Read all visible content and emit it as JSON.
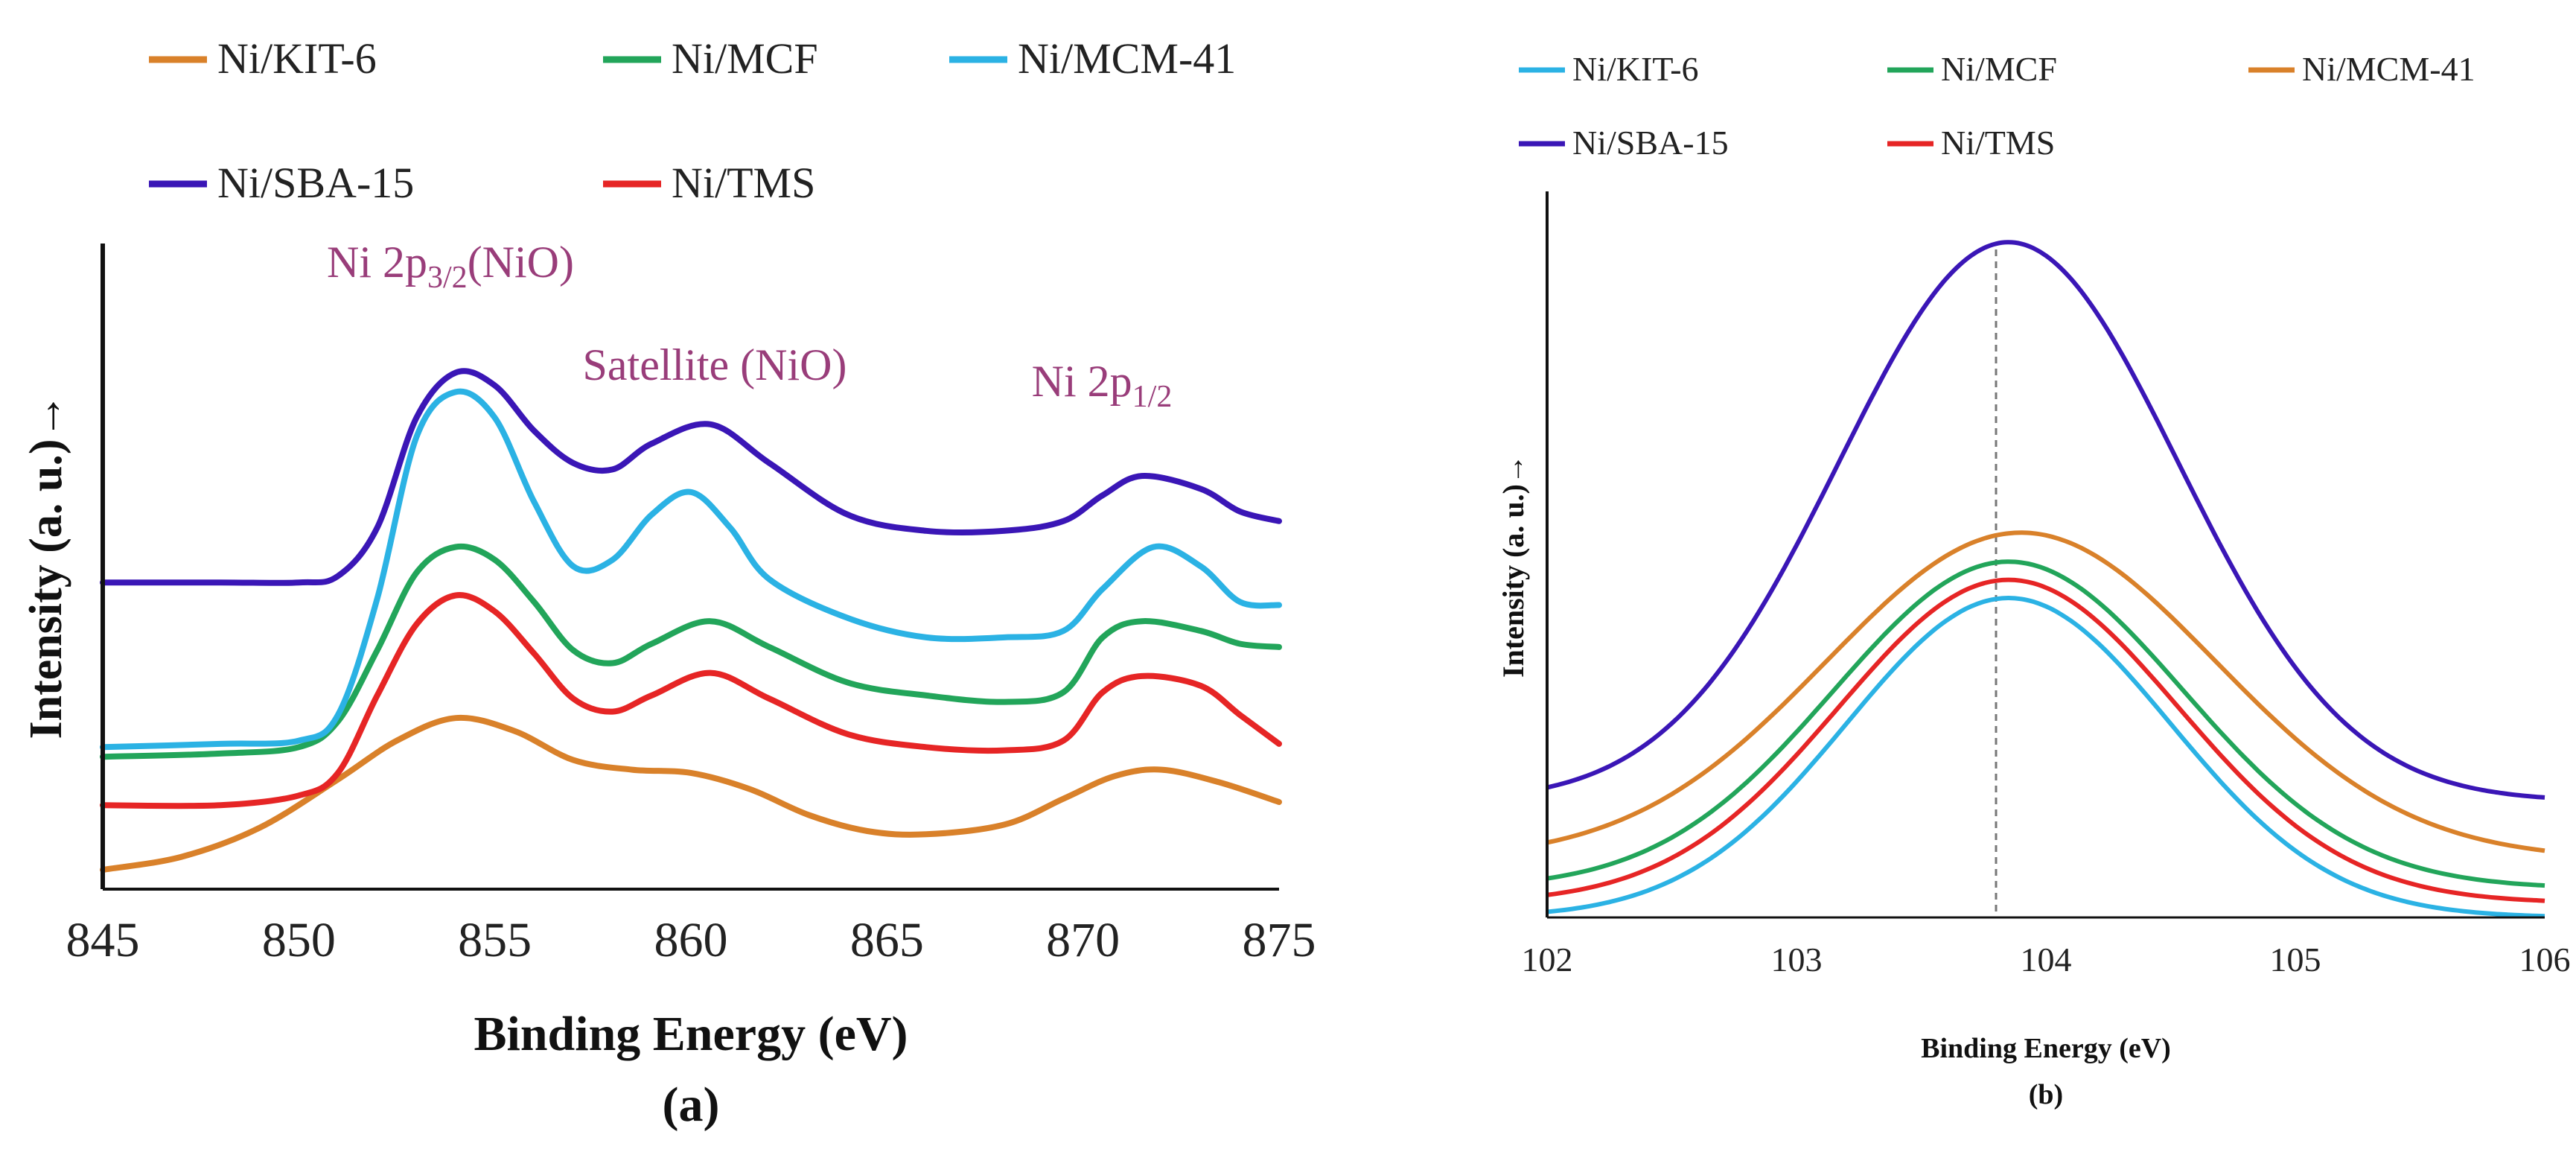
{
  "figure": {
    "caption_a": "(a)",
    "caption_b": "(b)"
  },
  "chart_data": [
    {
      "type": "line",
      "panel": "(a)",
      "title": "",
      "xlabel": "Binding Energy (eV)",
      "ylabel": "Intensity (a. u.)→",
      "xlim": [
        845,
        875
      ],
      "ylim": [
        0,
        100
      ],
      "xticks": [
        "845",
        "850",
        "855",
        "860",
        "865",
        "870",
        "875"
      ],
      "grid": false,
      "legend_position": "top",
      "annotations": [
        {
          "text": "Ni 2p",
          "sub": "3/2",
          "suffix": "(NiO)",
          "x": 854,
          "y": 90
        },
        {
          "text": "Satellite (NiO)",
          "sub": "",
          "suffix": "",
          "x": 860.5,
          "y": 78
        },
        {
          "text": "Ni 2p",
          "sub": "1/2",
          "suffix": "",
          "x": 871.5,
          "y": 75
        }
      ],
      "series": [
        {
          "name": "Ni/KIT-6",
          "color": "#D9812A",
          "x": [
            845,
            847,
            849,
            851,
            852.5,
            854,
            855.5,
            857,
            858.5,
            860,
            861.5,
            863,
            864.5,
            866,
            868,
            869.5,
            870.8,
            872,
            873.5,
            875
          ],
          "y": [
            3,
            5,
            9.5,
            17,
            23,
            26.5,
            24.5,
            20,
            18.5,
            18,
            15.5,
            11.5,
            9,
            8.5,
            10,
            14,
            17.5,
            18.5,
            16.5,
            13.5
          ]
        },
        {
          "name": "Ni/MCF",
          "color": "#22A55A",
          "x": [
            845,
            848,
            850,
            851,
            852,
            853,
            854,
            855,
            856,
            857,
            858,
            859,
            860.5,
            862,
            864,
            866,
            868,
            869.5,
            870.5,
            871.5,
            873,
            874,
            875
          ],
          "y": [
            20.5,
            21,
            22,
            26,
            37,
            49,
            53,
            51,
            44.5,
            37,
            35,
            38,
            41.5,
            37.5,
            32,
            30,
            29,
            30.5,
            39,
            41.5,
            40,
            38,
            37.5
          ]
        },
        {
          "name": "Ni/MCM-41",
          "color": "#2BB2E4",
          "x": [
            845,
            848,
            850,
            851,
            852,
            853,
            854,
            855,
            856,
            857,
            858,
            859,
            860,
            861,
            862,
            864,
            866,
            868,
            869.5,
            870.5,
            871.8,
            873,
            874,
            875
          ],
          "y": [
            22,
            22.5,
            23,
            27,
            45,
            70,
            77,
            73,
            60,
            50,
            51,
            58,
            61.5,
            56,
            48,
            42,
            39,
            39,
            40,
            46.5,
            53,
            50,
            44.5,
            44
          ]
        },
        {
          "name": "Ni/SBA-15",
          "color": "#3A16B6",
          "x": [
            845,
            848,
            850,
            851,
            852,
            853,
            854,
            855,
            856,
            857,
            858,
            859,
            860.5,
            862,
            864,
            866,
            868,
            869.5,
            870.5,
            871.5,
            873,
            874,
            875
          ],
          "y": [
            47.5,
            47.5,
            47.5,
            48.5,
            56,
            73,
            80,
            78,
            71,
            66,
            65,
            69,
            72,
            66,
            58,
            55.5,
            55.5,
            57,
            61,
            64,
            62,
            58.5,
            57
          ]
        },
        {
          "name": "Ni/TMS",
          "color": "#E62525",
          "x": [
            845,
            848,
            850,
            851,
            852,
            853,
            854,
            855,
            856,
            857,
            858,
            859,
            860.5,
            862,
            864,
            866,
            868,
            869.5,
            870.5,
            871.5,
            873,
            874,
            875
          ],
          "y": [
            13,
            13,
            14.5,
            18,
            30,
            41,
            45.5,
            43,
            36.5,
            29.5,
            27.5,
            30,
            33.5,
            29.5,
            24,
            22,
            21.5,
            23,
            30.5,
            33,
            31.5,
            27,
            22.5
          ]
        }
      ]
    },
    {
      "type": "line",
      "panel": "(b)",
      "title": "",
      "xlabel": "Binding Energy (eV)",
      "ylabel": "Intensity (a. u.)→",
      "xlim": [
        102,
        106
      ],
      "ylim": [
        0,
        100
      ],
      "xticks": [
        "102",
        "103",
        "104",
        "105",
        "106"
      ],
      "grid": false,
      "legend_position": "top",
      "reference_line": {
        "x": 103.8,
        "style": "dashed"
      },
      "series": [
        {
          "name": "Ni/KIT-6",
          "color": "#2BB2E4",
          "peak_x": 103.85,
          "peak_y": 44,
          "base_y": 0,
          "sigma": 0.65
        },
        {
          "name": "Ni/MCF",
          "color": "#22A55A",
          "peak_x": 103.85,
          "peak_y": 49,
          "base_y": 4,
          "sigma": 0.7
        },
        {
          "name": "Ni/MCM-41",
          "color": "#D9812A",
          "peak_x": 103.9,
          "peak_y": 53,
          "base_y": 8,
          "sigma": 0.78
        },
        {
          "name": "Ni/SBA-15",
          "color": "#3A16B6",
          "peak_x": 103.85,
          "peak_y": 93,
          "base_y": 16,
          "sigma": 0.68
        },
        {
          "name": "Ni/TMS",
          "color": "#E62525",
          "peak_x": 103.85,
          "peak_y": 46.5,
          "base_y": 2,
          "sigma": 0.68
        }
      ]
    }
  ]
}
